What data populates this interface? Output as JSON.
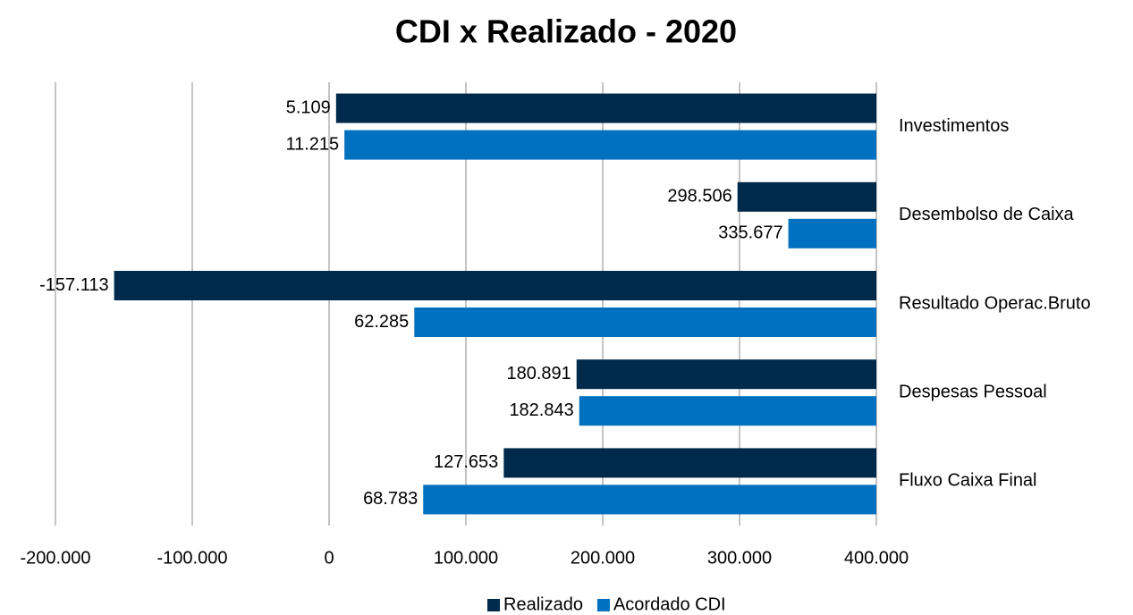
{
  "chart_data": {
    "type": "hbar",
    "title": "CDI  x  Realizado - 2020",
    "categories": [
      "Investimentos",
      "Desembolso de Caixa",
      "Resultado Operac.Bruto",
      "Despesas Pessoal",
      "Fluxo Caixa Final"
    ],
    "series": [
      {
        "name": "Realizado",
        "color": "#002a4c",
        "values": [
          5109,
          298506,
          -157113,
          180891,
          127653
        ],
        "value_labels": [
          "5.109",
          "298.506",
          "-157.113",
          "180.891",
          "127.653"
        ]
      },
      {
        "name": "Acordado CDI",
        "color": "#0070c0",
        "values": [
          11215,
          335677,
          62285,
          182843,
          68783
        ],
        "value_labels": [
          "11.215",
          "335.677",
          "62.285",
          "182.843",
          "68.783"
        ]
      }
    ],
    "xlim": [
      -200000,
      400000
    ],
    "xticks": [
      {
        "value": -200000,
        "label": "-200.000"
      },
      {
        "value": -100000,
        "label": "-100.000"
      },
      0,
      {
        "value": 100000,
        "label": "100.000"
      },
      {
        "value": 200000,
        "label": "200.000"
      },
      {
        "value": 300000,
        "label": "300.000"
      },
      {
        "value": 400000,
        "label": "400.000"
      }
    ],
    "axis_crosses": "max",
    "grid": true,
    "negative_color": "#ff0000",
    "legend": "bottom"
  }
}
